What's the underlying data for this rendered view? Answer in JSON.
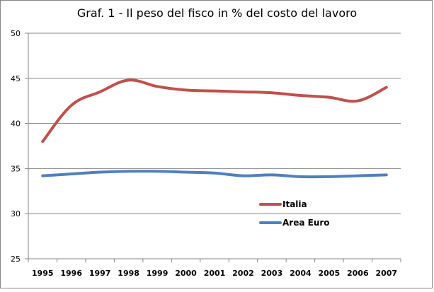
{
  "chart_data": {
    "type": "line",
    "title": "Graf. 1 - Il peso del fisco in % del costo del lavoro",
    "xlabel": "",
    "ylabel": "",
    "categories": [
      "1995",
      "1996",
      "1997",
      "1998",
      "1999",
      "2000",
      "2001",
      "2002",
      "2003",
      "2004",
      "2005",
      "2006",
      "2007"
    ],
    "ylim": [
      25,
      50
    ],
    "yticks": [
      "25",
      "30",
      "35",
      "40",
      "45",
      "50"
    ],
    "grid": true,
    "legend_position": "right-middle",
    "series": [
      {
        "name": "Italia",
        "color": "#c0504d",
        "values": [
          38.0,
          42.0,
          43.5,
          44.8,
          44.1,
          43.7,
          43.6,
          43.5,
          43.4,
          43.1,
          42.9,
          42.5,
          44.0
        ]
      },
      {
        "name": "Area Euro",
        "color": "#4f81bd",
        "values": [
          34.2,
          34.4,
          34.6,
          34.7,
          34.7,
          34.6,
          34.5,
          34.2,
          34.3,
          34.1,
          34.1,
          34.2,
          34.3
        ]
      }
    ]
  }
}
